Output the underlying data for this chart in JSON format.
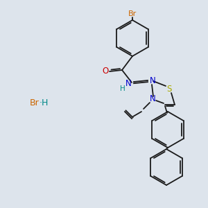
{
  "bg_color": "#dde4ec",
  "bond_color": "#1a1a1a",
  "colors": {
    "Br_top": "#cc6600",
    "S": "#aaaa00",
    "N": "#0000cc",
    "O": "#cc0000",
    "H": "#008888",
    "Br_salt": "#cc6600"
  },
  "lw": 1.3
}
